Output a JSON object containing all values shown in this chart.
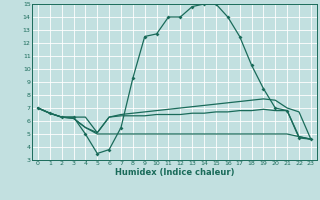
{
  "xlabel": "Humidex (Indice chaleur)",
  "xlim": [
    -0.5,
    23.5
  ],
  "ylim": [
    3,
    15
  ],
  "xticks": [
    0,
    1,
    2,
    3,
    4,
    5,
    6,
    7,
    8,
    9,
    10,
    11,
    12,
    13,
    14,
    15,
    16,
    17,
    18,
    19,
    20,
    21,
    22,
    23
  ],
  "yticks": [
    3,
    4,
    5,
    6,
    7,
    8,
    9,
    10,
    11,
    12,
    13,
    14,
    15
  ],
  "bg_color": "#c2e0e0",
  "line_color": "#1a6b5a",
  "grid_color": "#ffffff",
  "line1_x": [
    0,
    1,
    2,
    3,
    4,
    5,
    6,
    7,
    8,
    9,
    10,
    11,
    12,
    13,
    14,
    15,
    16,
    17,
    18,
    19,
    20,
    21,
    22,
    23
  ],
  "line1_y": [
    7.0,
    6.6,
    6.3,
    6.3,
    5.0,
    3.5,
    3.8,
    5.5,
    9.3,
    12.5,
    12.7,
    14.0,
    14.0,
    14.8,
    15.0,
    15.0,
    14.0,
    12.5,
    10.3,
    8.5,
    7.0,
    6.8,
    4.7,
    4.6
  ],
  "line2_x": [
    0,
    1,
    2,
    3,
    4,
    5,
    6,
    7,
    8,
    9,
    10,
    11,
    12,
    13,
    14,
    15,
    16,
    17,
    18,
    19,
    20,
    21,
    22,
    23
  ],
  "line2_y": [
    7.0,
    6.6,
    6.3,
    6.3,
    6.3,
    5.1,
    6.3,
    6.5,
    6.6,
    6.7,
    6.8,
    6.9,
    7.0,
    7.1,
    7.2,
    7.3,
    7.4,
    7.5,
    7.6,
    7.7,
    7.6,
    7.0,
    6.7,
    4.6
  ],
  "line3_x": [
    0,
    1,
    2,
    3,
    4,
    5,
    6,
    7,
    8,
    9,
    10,
    11,
    12,
    13,
    14,
    15,
    16,
    17,
    18,
    19,
    20,
    21,
    22,
    23
  ],
  "line3_y": [
    7.0,
    6.6,
    6.3,
    6.2,
    5.5,
    5.1,
    6.3,
    6.4,
    6.4,
    6.4,
    6.5,
    6.5,
    6.5,
    6.6,
    6.6,
    6.7,
    6.7,
    6.8,
    6.8,
    6.9,
    6.8,
    6.8,
    4.8,
    4.6
  ],
  "line4_x": [
    0,
    1,
    2,
    3,
    4,
    5,
    6,
    7,
    8,
    9,
    10,
    11,
    12,
    13,
    14,
    15,
    16,
    17,
    18,
    19,
    20,
    21,
    22,
    23
  ],
  "line4_y": [
    7.0,
    6.6,
    6.3,
    6.2,
    5.5,
    5.0,
    5.0,
    5.0,
    5.0,
    5.0,
    5.0,
    5.0,
    5.0,
    5.0,
    5.0,
    5.0,
    5.0,
    5.0,
    5.0,
    5.0,
    5.0,
    5.0,
    4.8,
    4.6
  ]
}
